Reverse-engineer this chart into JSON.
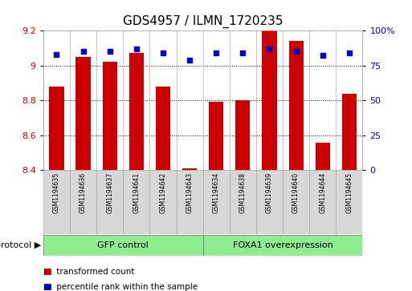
{
  "title": "GDS4957 / ILMN_1720235",
  "samples": [
    "GSM1194635",
    "GSM1194636",
    "GSM1194637",
    "GSM1194641",
    "GSM1194642",
    "GSM1194643",
    "GSM1194634",
    "GSM1194638",
    "GSM1194639",
    "GSM1194640",
    "GSM1194644",
    "GSM1194645"
  ],
  "red_values": [
    8.88,
    9.05,
    9.02,
    9.07,
    8.88,
    8.41,
    8.79,
    8.8,
    9.2,
    9.14,
    8.56,
    8.84
  ],
  "blue_values": [
    83,
    85,
    85,
    87,
    84,
    79,
    84,
    84,
    87,
    85,
    82,
    84
  ],
  "groups": [
    {
      "label": "GFP control",
      "start": 0,
      "end": 6,
      "color": "#90ee90"
    },
    {
      "label": "FOXA1 overexpression",
      "start": 6,
      "end": 12,
      "color": "#90ee90"
    }
  ],
  "ylim_left": [
    8.4,
    9.2
  ],
  "ylim_right": [
    0,
    100
  ],
  "yticks_left": [
    8.4,
    8.6,
    8.8,
    9.0,
    9.2
  ],
  "yticks_right": [
    0,
    25,
    50,
    75,
    100
  ],
  "left_tick_color": "#cc0000",
  "right_tick_color": "#0000cc",
  "bar_color": "#cc0000",
  "dot_color": "#0000cc",
  "bg_color": "#ffffff",
  "cell_color": "#d8d8d8",
  "group_color": "#90ee90",
  "legend_red": "transformed count",
  "legend_blue": "percentile rank within the sample",
  "protocol_label": "protocol",
  "title_fontsize": 11,
  "axis_tick_fontsize": 8,
  "sample_fontsize": 5.5,
  "group_fontsize": 8,
  "legend_fontsize": 7.5
}
